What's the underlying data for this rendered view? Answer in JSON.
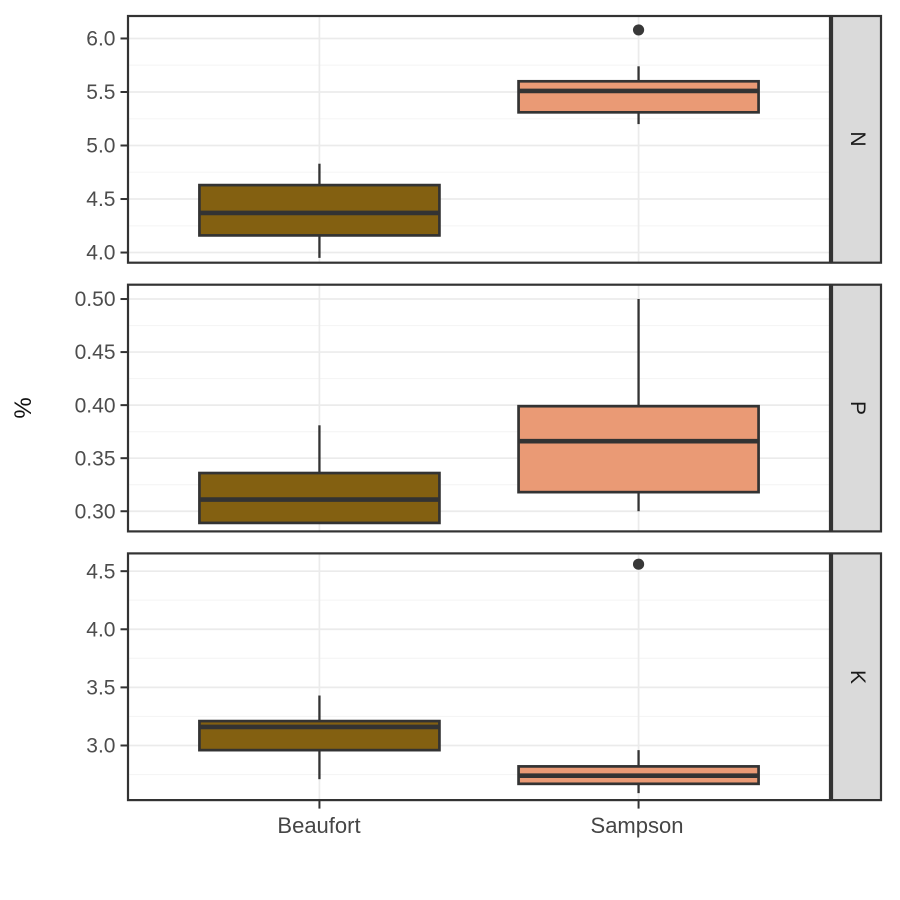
{
  "chart_data": {
    "type": "boxplot",
    "title": "",
    "xlabel": "",
    "ylabel": "%",
    "legend": "none",
    "grid": "on",
    "facet_position": "right",
    "categories": [
      "Beaufort",
      "Sampson"
    ],
    "category_colors": {
      "Beaufort": "#836011",
      "Sampson": "#EA9A75"
    },
    "facets": [
      {
        "label": "N",
        "ylim": [
          3.905,
          6.21
        ],
        "yticks": [
          4.0,
          4.5,
          5.0,
          5.5,
          6.0
        ],
        "ytick_labels": [
          "4.0",
          "4.5",
          "5.0",
          "5.5",
          "6.0"
        ],
        "boxes": [
          {
            "category": "Beaufort",
            "whisker_low": 3.95,
            "q1": 4.16,
            "median": 4.37,
            "q3": 4.63,
            "whisker_high": 4.83,
            "outliers": []
          },
          {
            "category": "Sampson",
            "whisker_low": 5.2,
            "q1": 5.31,
            "median": 5.51,
            "q3": 5.6,
            "whisker_high": 5.74,
            "outliers": [
              6.08
            ]
          }
        ]
      },
      {
        "label": "P",
        "ylim": [
          0.281,
          0.5135
        ],
        "yticks": [
          0.3,
          0.35,
          0.4,
          0.45,
          0.5
        ],
        "ytick_labels": [
          "0.30",
          "0.35",
          "0.40",
          "0.45",
          "0.50"
        ],
        "boxes": [
          {
            "category": "Beaufort",
            "whisker_low": 0.289,
            "q1": 0.289,
            "median": 0.311,
            "q3": 0.336,
            "whisker_high": 0.381,
            "outliers": []
          },
          {
            "category": "Sampson",
            "whisker_low": 0.3,
            "q1": 0.318,
            "median": 0.366,
            "q3": 0.399,
            "whisker_high": 0.5,
            "outliers": []
          }
        ]
      },
      {
        "label": "K",
        "ylim": [
          2.53,
          4.653
        ],
        "yticks": [
          3.0,
          3.5,
          4.0,
          4.5
        ],
        "ytick_labels": [
          "3.0",
          "3.5",
          "4.0",
          "4.5"
        ],
        "boxes": [
          {
            "category": "Beaufort",
            "whisker_low": 2.71,
            "q1": 2.96,
            "median": 3.16,
            "q3": 3.21,
            "whisker_high": 3.43,
            "outliers": []
          },
          {
            "category": "Sampson",
            "whisker_low": 2.59,
            "q1": 2.67,
            "median": 2.74,
            "q3": 2.82,
            "whisker_high": 2.96,
            "outliers": [
              4.56
            ]
          }
        ]
      }
    ],
    "colors": {
      "panel_background": "#ffffff",
      "panel_border": "#333333",
      "grid_major": "#EBEBEB",
      "grid_minor": "#F5F5F5",
      "box_stroke": "#333333",
      "outlier": "#383838",
      "strip_fill": "#DADADA",
      "strip_border": "#333333",
      "axis_text": "#4d4d4d",
      "tick_mark": "#333333"
    }
  }
}
